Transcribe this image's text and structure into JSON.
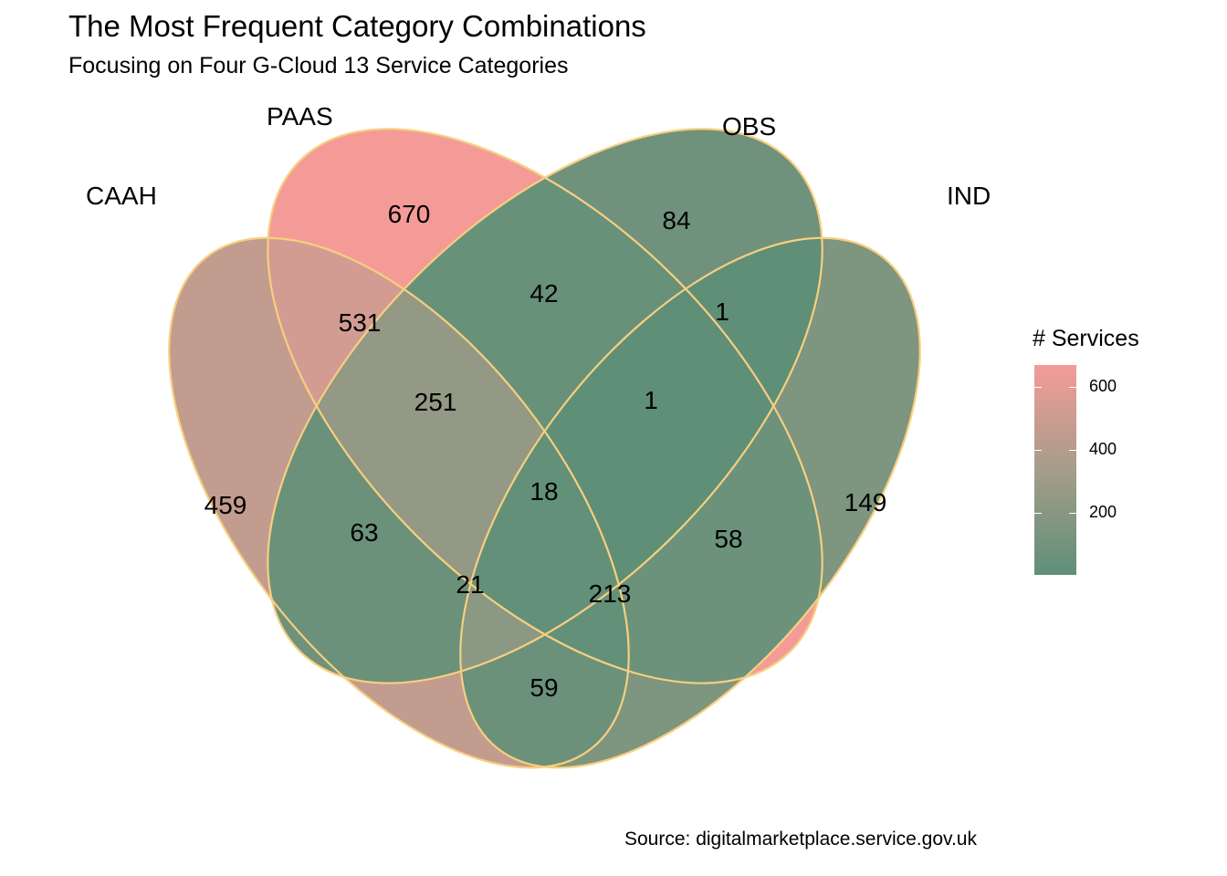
{
  "title": "The Most Frequent Category Combinations",
  "subtitle": "Focusing on Four G-Cloud 13 Service Categories",
  "caption": "Source: digitalmarketplace.service.gov.uk",
  "legend": {
    "title": "# Services",
    "ticks": [
      "600",
      "400",
      "200"
    ],
    "tick_values": [
      600,
      400,
      200
    ],
    "min": 1,
    "max": 670,
    "low_color": "#5f8f77",
    "mid_color": "#a59d8a",
    "high_color": "#f49b98"
  },
  "outline_color": "#f7cf7f",
  "chart_data": {
    "type": "venn",
    "sets": [
      "CAAH",
      "PAAS",
      "OBS",
      "IND"
    ],
    "regions": [
      {
        "sets": [
          "PAAS"
        ],
        "value": 670
      },
      {
        "sets": [
          "OBS"
        ],
        "value": 84
      },
      {
        "sets": [
          "PAAS",
          "OBS"
        ],
        "value": 42
      },
      {
        "sets": [
          "OBS",
          "IND"
        ],
        "value": 1
      },
      {
        "sets": [
          "CAAH",
          "PAAS"
        ],
        "value": 531
      },
      {
        "sets": [
          "CAAH",
          "PAAS",
          "OBS"
        ],
        "value": 251
      },
      {
        "sets": [
          "PAAS",
          "OBS",
          "IND"
        ],
        "value": 1
      },
      {
        "sets": [
          "CAAH"
        ],
        "value": 459
      },
      {
        "sets": [
          "CAAH",
          "PAAS",
          "OBS",
          "IND"
        ],
        "value": 18
      },
      {
        "sets": [
          "IND"
        ],
        "value": 149
      },
      {
        "sets": [
          "PAAS",
          "IND"
        ],
        "value": 63
      },
      {
        "sets": [
          "CAAH",
          "OBS"
        ],
        "value": 58
      },
      {
        "sets": [
          "CAAH",
          "PAAS",
          "IND"
        ],
        "value": 21
      },
      {
        "sets": [
          "CAAH",
          "OBS",
          "IND"
        ],
        "value": 213
      },
      {
        "sets": [
          "CAAH",
          "IND"
        ],
        "value": 59
      }
    ]
  }
}
